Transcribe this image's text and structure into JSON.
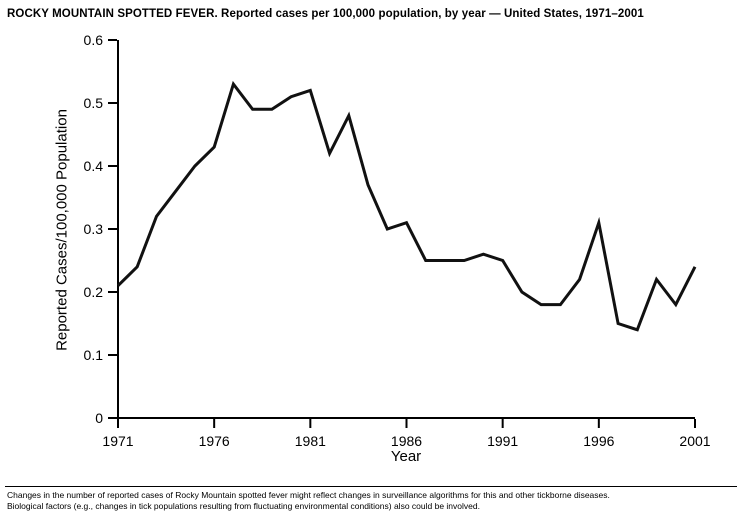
{
  "title": "ROCKY MOUNTAIN SPOTTED FEVER. Reported cases per 100,000 population, by year — United States, 1971–2001",
  "footnote": {
    "line1": "Changes in the number of reported cases of Rocky Mountain spotted fever might reflect changes in surveillance algorithms for this and other tickborne diseases.",
    "line2": "Biological factors (e.g., changes in tick populations resulting from fluctuating environmental conditions) also could be involved."
  },
  "chart_data": {
    "type": "line",
    "title": "ROCKY MOUNTAIN SPOTTED FEVER. Reported cases per 100,000 population, by year — United States, 1971–2001",
    "xlabel": "Year",
    "ylabel": "Reported Cases/100,000 Population",
    "xlim": [
      1971,
      2001
    ],
    "ylim": [
      0,
      0.6
    ],
    "grid": false,
    "legend": "none",
    "line_color": "#111111",
    "x": [
      1971,
      1972,
      1973,
      1974,
      1975,
      1976,
      1977,
      1978,
      1979,
      1980,
      1981,
      1982,
      1983,
      1984,
      1985,
      1986,
      1987,
      1988,
      1989,
      1990,
      1991,
      1992,
      1993,
      1994,
      1995,
      1996,
      1997,
      1998,
      1999,
      2000,
      2001
    ],
    "values": [
      0.21,
      0.24,
      0.32,
      0.36,
      0.4,
      0.43,
      0.53,
      0.49,
      0.49,
      0.51,
      0.52,
      0.42,
      0.48,
      0.37,
      0.3,
      0.31,
      0.25,
      0.25,
      0.25,
      0.26,
      0.25,
      0.2,
      0.18,
      0.18,
      0.22,
      0.31,
      0.15,
      0.14,
      0.22,
      0.18,
      0.24
    ],
    "xticks": [
      1971,
      1976,
      1981,
      1986,
      1991,
      1996,
      2001
    ],
    "yticks": [
      {
        "value": 0,
        "label": "0"
      },
      {
        "value": 0.1,
        "label": "0.1"
      },
      {
        "value": 0.2,
        "label": "0.2"
      },
      {
        "value": 0.3,
        "label": "0.3"
      },
      {
        "value": 0.4,
        "label": "0.4"
      },
      {
        "value": 0.5,
        "label": "0.5"
      },
      {
        "value": 0.6,
        "label": "0.6"
      }
    ]
  }
}
